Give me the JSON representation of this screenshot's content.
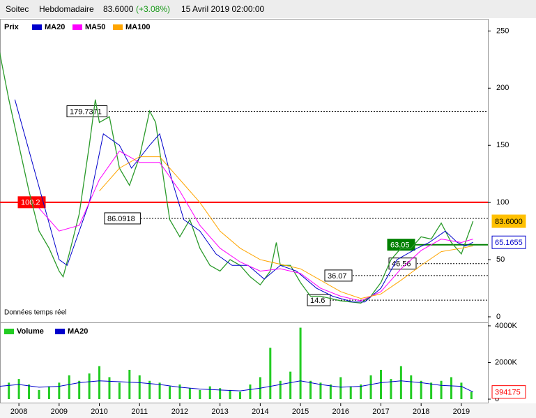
{
  "header": {
    "name": "Soitec",
    "period": "Hebdomadaire",
    "price": "83.6000",
    "change": "(+3.08%)",
    "date": "15 Avril 2019 02:00:00"
  },
  "chart_data": [
    {
      "type": "line",
      "note": "Données temps réel",
      "xlim": [
        2007.53,
        2019.66
      ],
      "ylim": [
        0,
        260
      ],
      "yticks": [
        0,
        50,
        100,
        150,
        200,
        250
      ],
      "series": [
        {
          "name": "Prix",
          "color": "#2a9a2a",
          "x": [
            2007.5,
            2007.75,
            2008.0,
            2008.25,
            2008.5,
            2008.75,
            2009.0,
            2009.1,
            2009.25,
            2009.5,
            2009.75,
            2009.9,
            2010.0,
            2010.25,
            2010.5,
            2010.75,
            2011.0,
            2011.25,
            2011.4,
            2011.6,
            2011.75,
            2012.0,
            2012.25,
            2012.5,
            2012.75,
            2013.0,
            2013.25,
            2013.5,
            2013.75,
            2014.0,
            2014.25,
            2014.4,
            2014.5,
            2014.75,
            2015.0,
            2015.25,
            2015.5,
            2015.75,
            2016.0,
            2016.25,
            2016.5,
            2016.75,
            2017.0,
            2017.25,
            2017.5,
            2017.75,
            2018.0,
            2018.25,
            2018.5,
            2018.75,
            2019.0,
            2019.15,
            2019.29
          ],
          "values": [
            235,
            190,
            150,
            110,
            75,
            60,
            40,
            35,
            55,
            90,
            150,
            190,
            170,
            175,
            130,
            115,
            140,
            180,
            170,
            120,
            85,
            70,
            85,
            60,
            45,
            40,
            50,
            45,
            35,
            28,
            40,
            65,
            45,
            45,
            30,
            18,
            18,
            16,
            14,
            13,
            12,
            18,
            30,
            50,
            60,
            60,
            70,
            68,
            82,
            65,
            55,
            70,
            83.6
          ]
        },
        {
          "name": "MA20",
          "color": "#0000cc",
          "x": [
            2007.9,
            2009.0,
            2009.2,
            2009.75,
            2010.1,
            2010.5,
            2010.8,
            2011.25,
            2011.5,
            2011.8,
            2012.1,
            2012.5,
            2012.9,
            2013.3,
            2013.7,
            2014.1,
            2014.5,
            2014.9,
            2015.4,
            2015.8,
            2016.3,
            2016.6,
            2017.0,
            2017.4,
            2017.9,
            2018.2,
            2018.6,
            2018.9,
            2019.1,
            2019.29
          ],
          "values": [
            190,
            50,
            45,
            100,
            160,
            150,
            130,
            150,
            160,
            120,
            85,
            75,
            55,
            45,
            45,
            33,
            45,
            40,
            25,
            18,
            13,
            13,
            25,
            50,
            60,
            65,
            75,
            65,
            62,
            65.1655
          ]
        },
        {
          "name": "MA50",
          "color": "#ff00ff",
          "x": [
            2008.5,
            2009.0,
            2009.5,
            2010.0,
            2010.5,
            2011.0,
            2011.5,
            2012.0,
            2012.5,
            2013.0,
            2013.5,
            2014.0,
            2014.5,
            2015.0,
            2015.5,
            2016.0,
            2016.5,
            2017.0,
            2017.5,
            2018.0,
            2018.5,
            2019.0,
            2019.29
          ],
          "values": [
            95,
            75,
            80,
            120,
            145,
            135,
            135,
            110,
            80,
            60,
            48,
            40,
            42,
            38,
            25,
            18,
            14,
            22,
            42,
            58,
            68,
            65,
            68
          ]
        },
        {
          "name": "MA100",
          "color": "#ffa500",
          "x": [
            2010.0,
            2010.5,
            2011.0,
            2011.5,
            2012.0,
            2012.5,
            2013.0,
            2013.5,
            2014.0,
            2014.5,
            2015.0,
            2015.5,
            2016.0,
            2016.5,
            2017.0,
            2017.5,
            2018.0,
            2018.5,
            2019.0,
            2019.29
          ],
          "values": [
            110,
            130,
            140,
            140,
            120,
            100,
            75,
            60,
            50,
            46,
            42,
            32,
            22,
            16,
            20,
            32,
            45,
            57,
            60,
            62
          ]
        }
      ],
      "levels": [
        {
          "value": 179.7371,
          "label": "179.7371",
          "style": "dotted",
          "color": "#000000"
        },
        {
          "value": 100.2,
          "label": "100.2",
          "style": "solid",
          "color": "#ff0000"
        },
        {
          "value": 86.0918,
          "label": "86.0918",
          "style": "dotted",
          "color": "#000000"
        },
        {
          "value": 63.05,
          "label": "63.05",
          "style": "solid",
          "color": "#008000"
        },
        {
          "value": 46.56,
          "label": "46.56",
          "style": "dotted",
          "color": "#000000"
        },
        {
          "value": 36.07,
          "label": "36.07",
          "style": "dotted",
          "color": "#000000"
        },
        {
          "value": 14.6,
          "label": "14.6",
          "style": "dotted",
          "color": "#000000"
        }
      ],
      "last_labels": [
        {
          "value": 83.6,
          "label": "83.6000",
          "color": "#ffc000"
        },
        {
          "value": 65.1655,
          "label": "65.1655",
          "color": "#0000cc"
        }
      ]
    },
    {
      "type": "bar",
      "xlim": [
        2007.53,
        2019.66
      ],
      "ylim": [
        0,
        4150000
      ],
      "yticks": [
        {
          "value": 0,
          "label": "0"
        },
        {
          "value": 2000000,
          "label": "2000K"
        },
        {
          "value": 4000000,
          "label": "4000K"
        }
      ],
      "xticks": [
        2008,
        2009,
        2010,
        2011,
        2012,
        2013,
        2014,
        2015,
        2016,
        2017,
        2018,
        2019
      ],
      "series": [
        {
          "name": "Volume",
          "color": "#22cc22",
          "x": [
            2007.5,
            2007.75,
            2008.0,
            2008.25,
            2008.5,
            2008.75,
            2009.0,
            2009.25,
            2009.5,
            2009.75,
            2010.0,
            2010.25,
            2010.5,
            2010.75,
            2011.0,
            2011.25,
            2011.5,
            2011.75,
            2012.0,
            2012.25,
            2012.5,
            2012.75,
            2013.0,
            2013.25,
            2013.5,
            2013.75,
            2014.0,
            2014.25,
            2014.5,
            2014.75,
            2015.0,
            2015.25,
            2015.5,
            2015.75,
            2016.0,
            2016.25,
            2016.5,
            2016.75,
            2017.0,
            2017.25,
            2017.5,
            2017.75,
            2018.0,
            2018.25,
            2018.5,
            2018.75,
            2019.0,
            2019.25
          ],
          "values": [
            600000,
            900000,
            1100000,
            800000,
            500000,
            700000,
            900000,
            1300000,
            1000000,
            1400000,
            1800000,
            1200000,
            900000,
            1600000,
            1300000,
            1000000,
            900000,
            700000,
            800000,
            600000,
            500000,
            700000,
            600000,
            500000,
            400000,
            800000,
            1200000,
            2800000,
            1000000,
            1500000,
            3900000,
            1000000,
            900000,
            800000,
            1200000,
            700000,
            800000,
            1300000,
            1600000,
            1100000,
            1800000,
            1300000,
            1000000,
            900000,
            1000000,
            1200000,
            900000,
            400000
          ]
        },
        {
          "name": "MA20",
          "color": "#0000cc",
          "x": [
            2007.5,
            2008.0,
            2008.5,
            2009.0,
            2009.5,
            2010.0,
            2010.5,
            2011.0,
            2011.5,
            2012.0,
            2012.5,
            2013.0,
            2013.5,
            2014.0,
            2014.5,
            2015.0,
            2015.5,
            2016.0,
            2016.5,
            2017.0,
            2017.5,
            2018.0,
            2018.5,
            2019.0,
            2019.29
          ],
          "values": [
            700000,
            800000,
            650000,
            700000,
            900000,
            1000000,
            950000,
            900000,
            800000,
            650000,
            550000,
            500000,
            450000,
            600000,
            800000,
            1000000,
            800000,
            650000,
            700000,
            900000,
            1000000,
            900000,
            750000,
            700000,
            394175
          ]
        }
      ],
      "last_labels": [
        {
          "value": 394175,
          "label": "394175",
          "color": "#ff0000"
        }
      ]
    }
  ]
}
